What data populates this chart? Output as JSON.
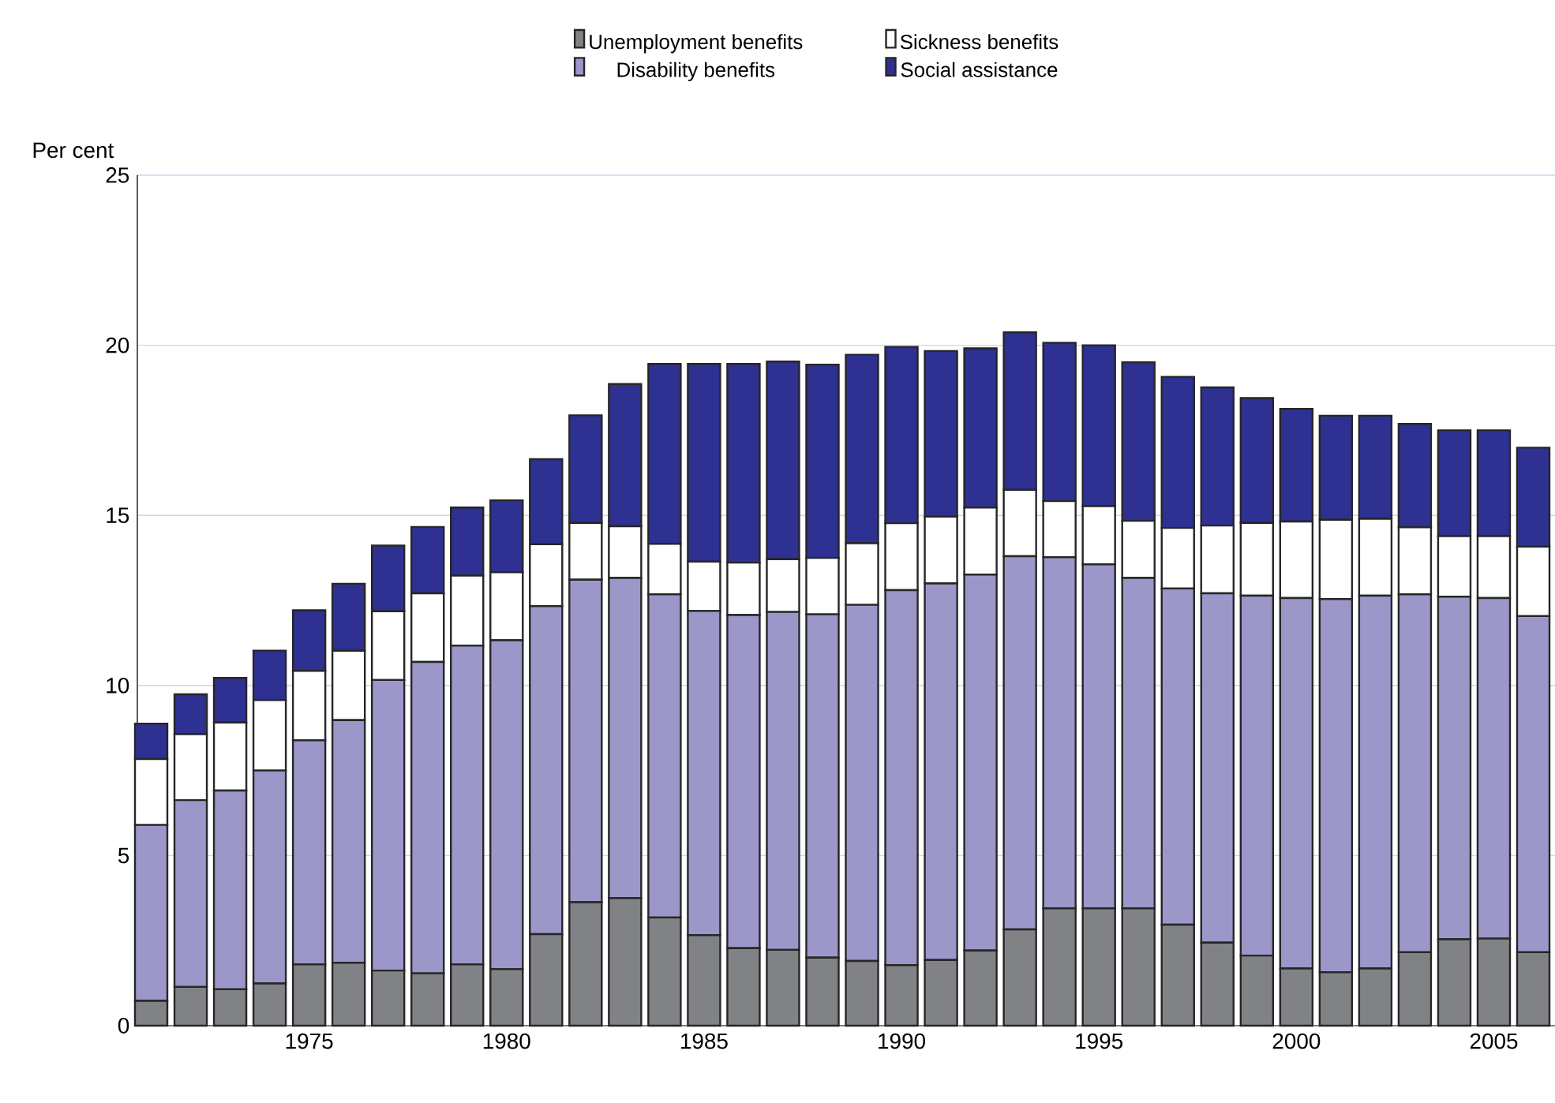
{
  "chart_data": {
    "type": "bar",
    "stacked": true,
    "ylabel": "Per cent",
    "x": [
      1971,
      1972,
      1973,
      1974,
      1975,
      1976,
      1977,
      1978,
      1979,
      1980,
      1981,
      1982,
      1983,
      1984,
      1985,
      1986,
      1987,
      1988,
      1989,
      1990,
      1991,
      1992,
      1993,
      1994,
      1995,
      1996,
      1997,
      1998,
      1999,
      2000,
      2001,
      2002,
      2003,
      2004,
      2005,
      2006
    ],
    "xlim": [
      1970.65,
      2006.55
    ],
    "xticks": [
      1975,
      1980,
      1985,
      1990,
      1995,
      2000,
      2005
    ],
    "ylim": [
      0,
      25
    ],
    "yticks": [
      0,
      5,
      10,
      15,
      20,
      25
    ],
    "grid": "y",
    "legend": "top",
    "series": [
      {
        "name": "Unemployment benefits",
        "color": "#808285",
        "values": [
          0.73,
          1.14,
          1.07,
          1.24,
          1.8,
          1.85,
          1.62,
          1.54,
          1.8,
          1.66,
          2.69,
          3.63,
          3.75,
          3.18,
          2.66,
          2.28,
          2.23,
          2.0,
          1.9,
          1.78,
          1.93,
          2.21,
          2.83,
          3.45,
          3.45,
          3.45,
          2.97,
          2.44,
          2.06,
          1.68,
          1.57,
          1.68,
          2.16,
          2.54,
          2.56,
          2.16
        ]
      },
      {
        "name": "Disability benefits",
        "color": "#9c97c9",
        "values": [
          5.17,
          5.49,
          5.84,
          6.26,
          6.59,
          7.13,
          8.54,
          9.15,
          9.37,
          9.67,
          9.64,
          9.48,
          9.41,
          9.5,
          9.53,
          9.79,
          9.93,
          10.09,
          10.47,
          11.02,
          11.07,
          11.05,
          10.97,
          10.32,
          10.11,
          9.71,
          9.88,
          10.27,
          10.58,
          10.89,
          10.97,
          10.96,
          10.52,
          10.07,
          10.01,
          9.88
        ]
      },
      {
        "name": "Sickness benefits",
        "color": "#ffffff",
        "values": [
          1.94,
          1.94,
          2.0,
          2.07,
          2.04,
          2.04,
          2.02,
          2.02,
          2.06,
          2.0,
          1.82,
          1.67,
          1.52,
          1.48,
          1.45,
          1.54,
          1.55,
          1.66,
          1.81,
          1.97,
          1.96,
          1.97,
          1.95,
          1.65,
          1.71,
          1.68,
          1.78,
          1.99,
          2.14,
          2.25,
          2.33,
          2.26,
          1.97,
          1.78,
          1.82,
          2.04
        ]
      },
      {
        "name": "Social assistance",
        "color": "#2e3192",
        "values": [
          1.04,
          1.17,
          1.31,
          1.45,
          1.78,
          1.97,
          1.93,
          1.95,
          2.0,
          2.11,
          2.5,
          3.16,
          4.18,
          5.29,
          5.81,
          5.84,
          5.81,
          5.68,
          5.54,
          5.18,
          4.87,
          4.68,
          4.63,
          4.65,
          4.73,
          4.66,
          4.44,
          4.06,
          3.67,
          3.31,
          3.06,
          3.03,
          3.04,
          3.11,
          3.11,
          2.91
        ]
      }
    ]
  }
}
